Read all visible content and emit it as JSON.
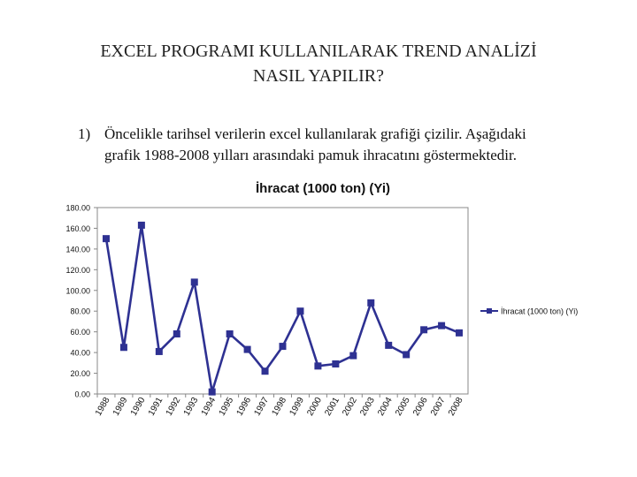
{
  "slide": {
    "title_line1": "EXCEL PROGRAMI KULLANILARAK TREND ANALİZİ",
    "title_line2": "NASIL YAPILIR?",
    "item_number": "1)",
    "item_line1": "Öncelikle tarihsel verilerin excel kullanılarak grafiği çizilir. Aşağıdaki",
    "item_line2": "grafik 1988-2008 yılları arasındaki pamuk ihracatını göstermektedir."
  },
  "chart_data": {
    "type": "line",
    "title": "İhracat (1000 ton) (Yi)",
    "categories": [
      "1988",
      "1989",
      "1990",
      "1991",
      "1992",
      "1993",
      "1994",
      "1995",
      "1996",
      "1997",
      "1998",
      "1999",
      "2000",
      "2001",
      "2002",
      "2003",
      "2004",
      "2005",
      "2006",
      "2007",
      "2008"
    ],
    "series": [
      {
        "name": "İhracat (1000 ton) (Yi)",
        "values": [
          150,
          45,
          163,
          41,
          58,
          108,
          2,
          58,
          43,
          22,
          46,
          80,
          27,
          29,
          37,
          88,
          47,
          38,
          62,
          66,
          59
        ]
      }
    ],
    "y_ticks": [
      "0.00",
      "20.00",
      "40.00",
      "60.00",
      "80.00",
      "100.00",
      "120.00",
      "140.00",
      "160.00",
      "180.00"
    ],
    "ylim": [
      0,
      180
    ],
    "grid": false,
    "legend": "right",
    "color": "#2e3192"
  }
}
